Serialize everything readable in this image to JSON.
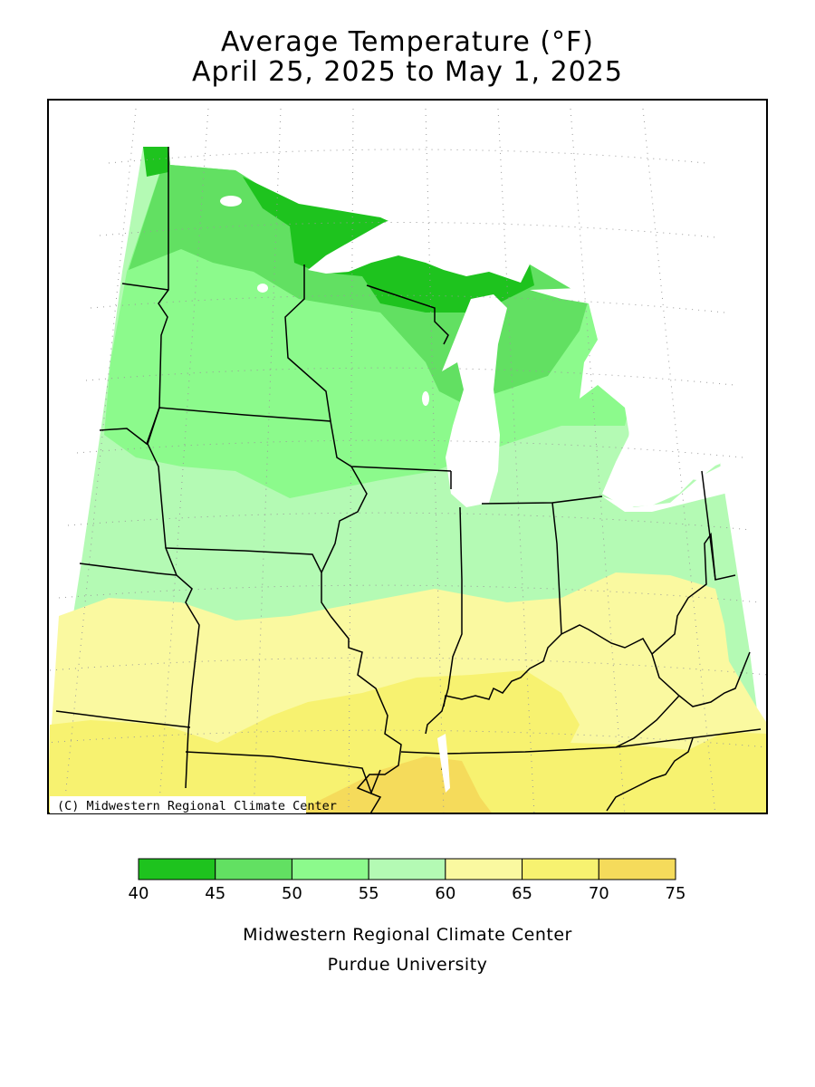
{
  "title_line1": "Average Temperature (°F)",
  "title_line2": "April 25, 2025 to May 1, 2025",
  "copyright": "(C) Midwestern Regional Climate Center",
  "legend": {
    "breaks": [
      "40",
      "45",
      "50",
      "55",
      "60",
      "65",
      "70",
      "75"
    ],
    "colors": [
      "#1ec31e",
      "#62e062",
      "#8cfa8c",
      "#b4fab4",
      "#faf9a0",
      "#f7f270",
      "#f5db5b"
    ]
  },
  "footer_line1": "Midwestern Regional Climate Center",
  "footer_line2": "Purdue University"
}
